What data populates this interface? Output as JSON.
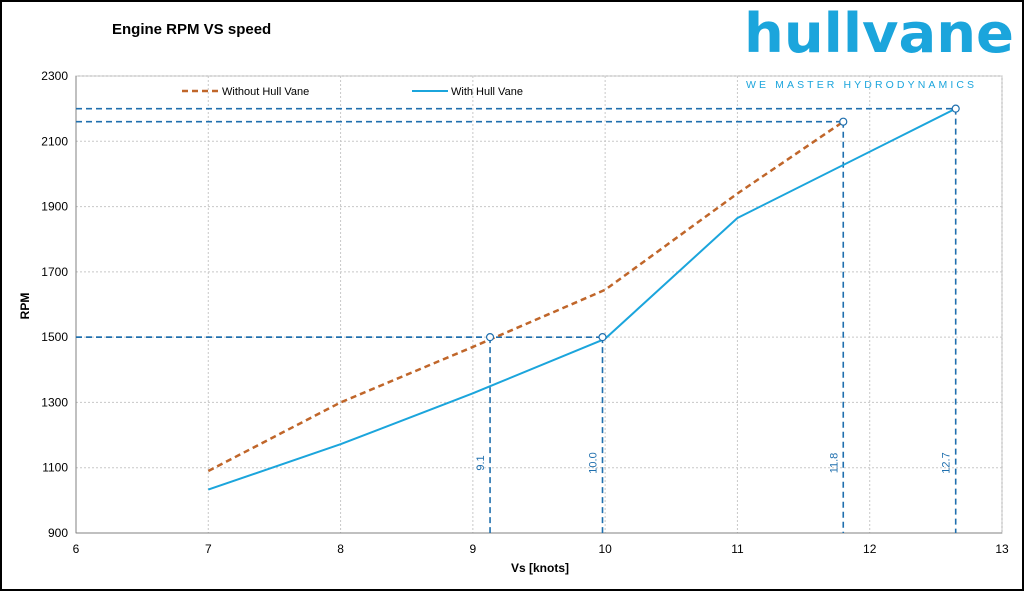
{
  "brand": {
    "name": "hullvane",
    "tagline": "WE MASTER HYDRODYNAMICS",
    "color": "#1ba5dc"
  },
  "chart_data": {
    "type": "line",
    "title": "Engine RPM VS speed",
    "xlabel": "Vs [knots]",
    "ylabel": "RPM",
    "xlim": [
      6,
      13
    ],
    "ylim": [
      900,
      2300
    ],
    "xticks": [
      6,
      7,
      8,
      9,
      10,
      11,
      12,
      13
    ],
    "yticks": [
      900,
      1100,
      1300,
      1500,
      1700,
      1900,
      2100,
      2300
    ],
    "grid": true,
    "legend_position": "top",
    "series": [
      {
        "name": "Without Hull Vane",
        "color": "#c0662a",
        "style": "dashed",
        "x": [
          7,
          8,
          9,
          10,
          11,
          11.8
        ],
        "y": [
          1090,
          1300,
          1470,
          1645,
          1940,
          2160
        ]
      },
      {
        "name": "With Hull Vane",
        "color": "#1ba5dc",
        "style": "solid",
        "x": [
          7,
          8,
          9,
          10,
          11,
          12.65
        ],
        "y": [
          1033,
          1172,
          1328,
          1495,
          1865,
          2200
        ]
      }
    ],
    "reference_lines": [
      {
        "x": 9.13,
        "y": 1500,
        "label": "9.1"
      },
      {
        "x": 9.98,
        "y": 1500,
        "label": "10.0"
      },
      {
        "x": 11.8,
        "y": 2160,
        "label": "11.8"
      },
      {
        "x": 12.65,
        "y": 2200,
        "label": "12.7"
      }
    ],
    "reference_color": "#1f6fae"
  }
}
